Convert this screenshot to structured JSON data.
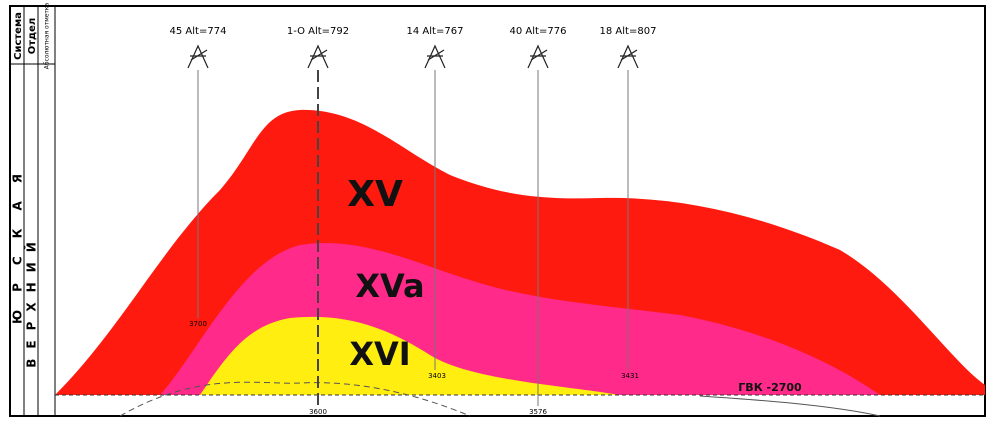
{
  "header": {
    "system": "Система",
    "department": "Отдел",
    "altitude": "Абсолютная отметка"
  },
  "columns": {
    "system": "ЮРСКАЯ",
    "department": "ВЕРХНИЙ"
  },
  "wells": [
    {
      "label": "45 Alt=774",
      "depth": "3700"
    },
    {
      "label": "1-O Alt=792",
      "depth": "3600"
    },
    {
      "label": "14 Alt=767",
      "depth": "3403"
    },
    {
      "label": "40 Alt=776",
      "depth": "3576"
    },
    {
      "label": "18 Alt=807",
      "depth": "3431"
    }
  ],
  "layers": [
    "XV",
    "XVa",
    "XVI"
  ],
  "contact": "ГВК -2700"
}
